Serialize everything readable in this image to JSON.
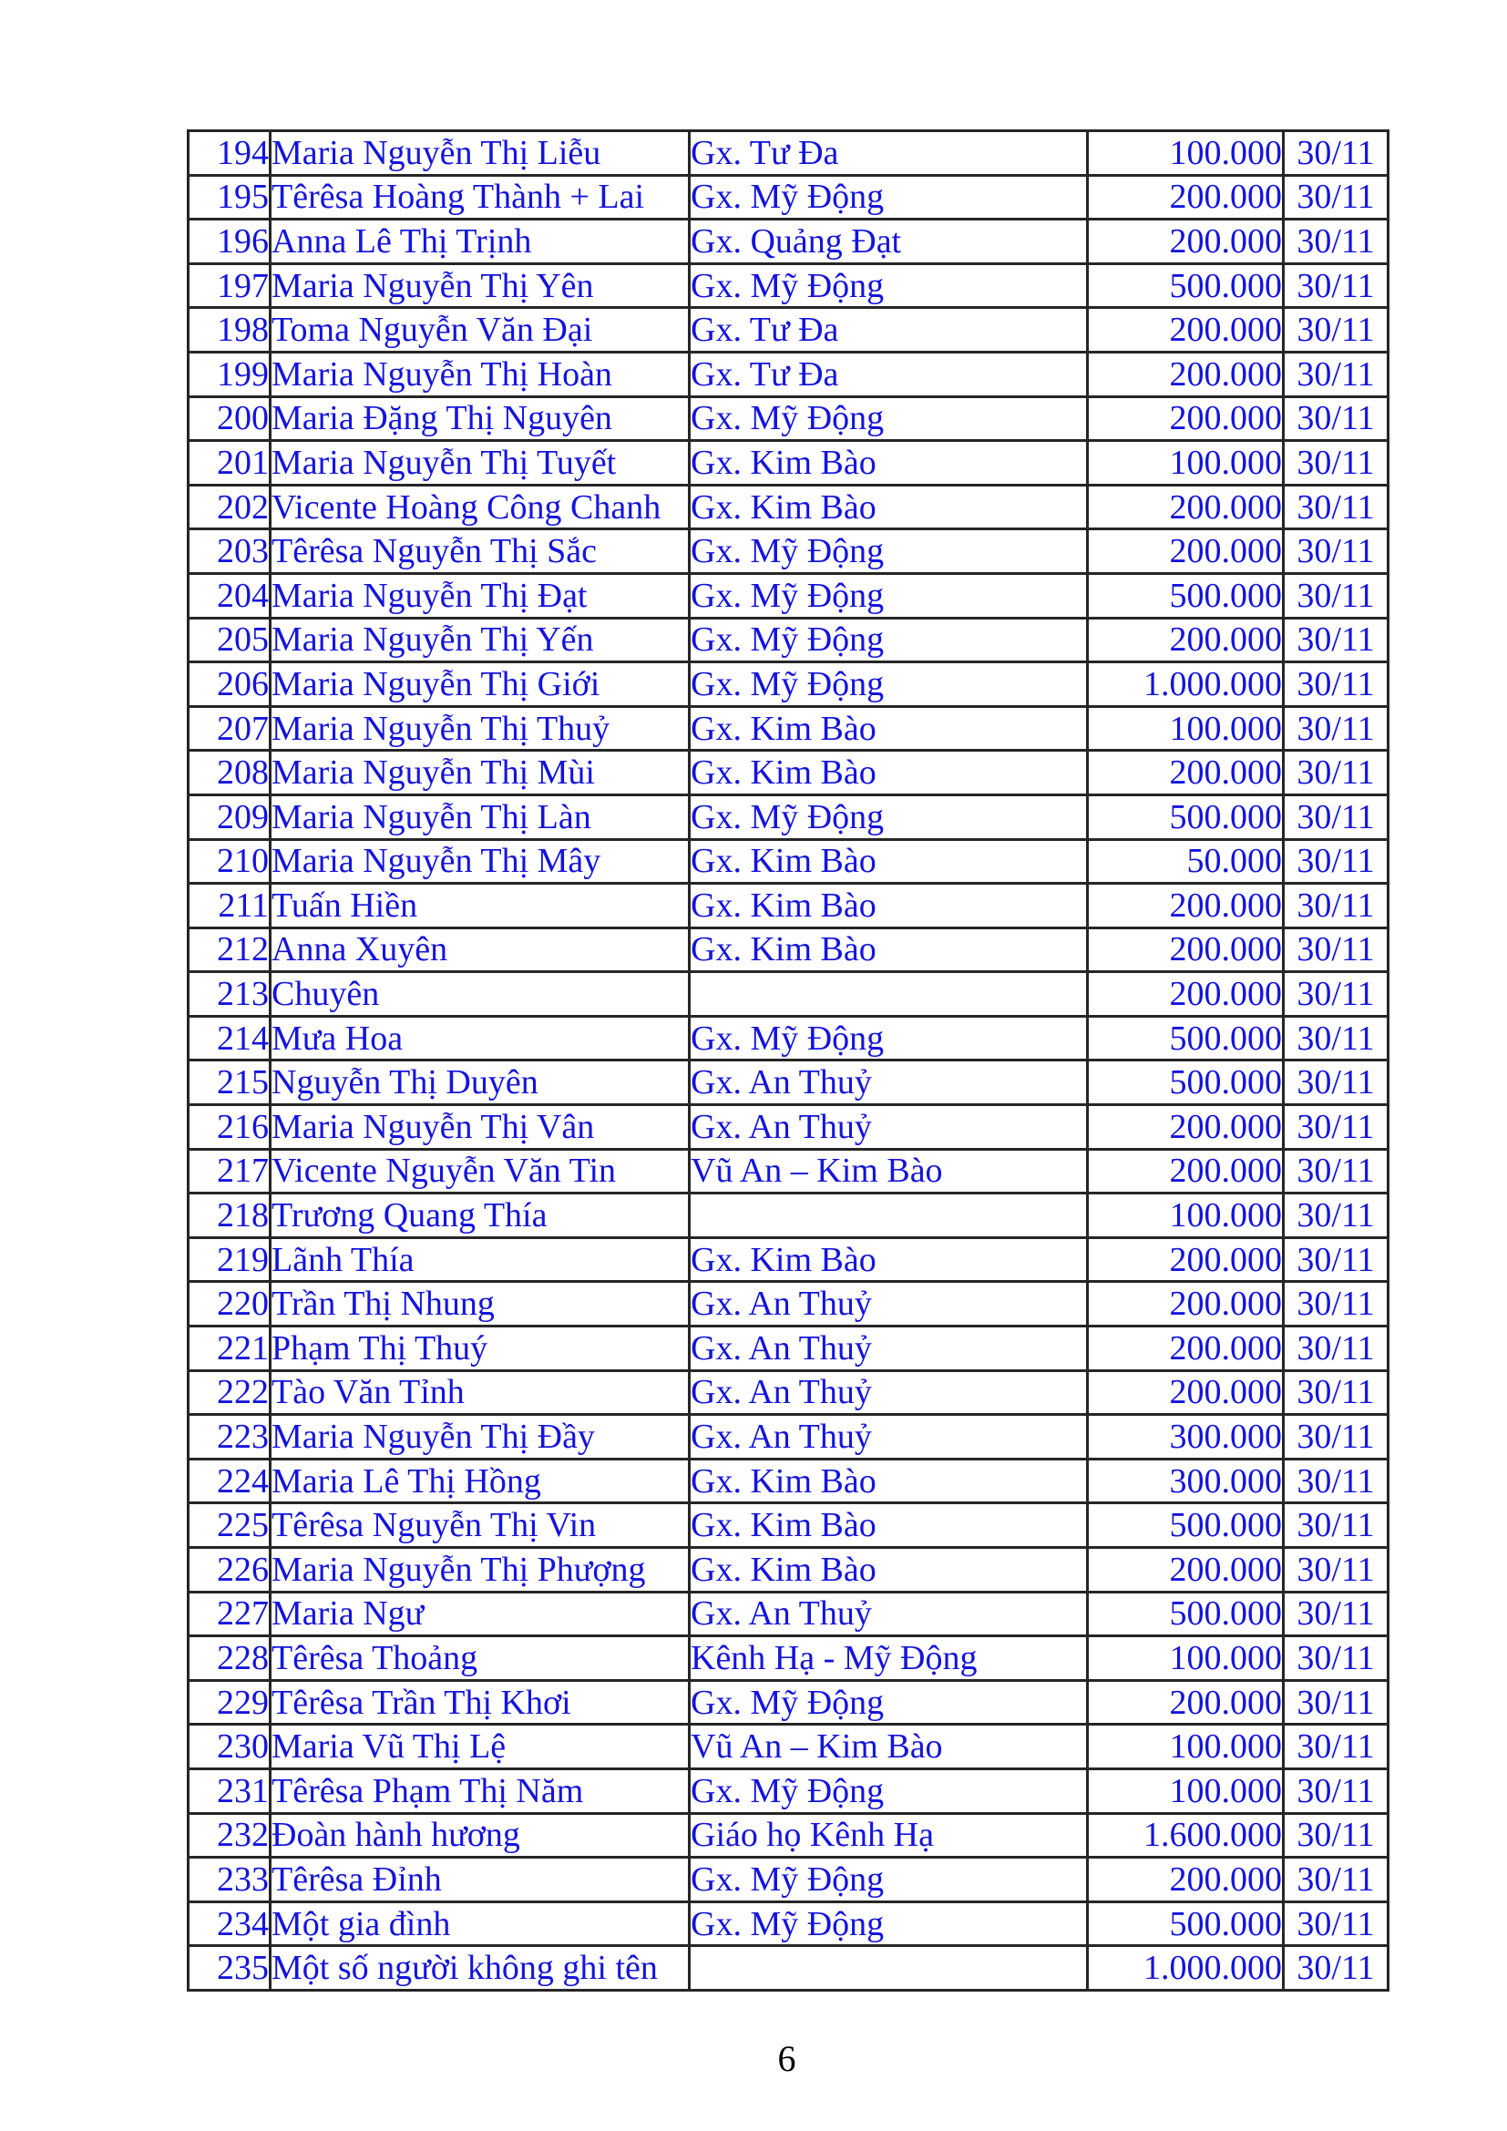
{
  "page_number": "6",
  "styles": {
    "text_color": "#1414dd",
    "border_color": "#262626",
    "background_color": "#ffffff"
  },
  "table": {
    "columns": [
      "no",
      "name",
      "parish",
      "amount",
      "date"
    ],
    "date_note": "all rows dated 30/11"
  },
  "rows": [
    {
      "no": "194",
      "name": "Maria Nguyễn Thị Liễu",
      "parish": "Gx. Tư Đa",
      "amount": "100.000",
      "date": "30/11"
    },
    {
      "no": "195",
      "name": "Têrêsa Hoàng Thành + Lai",
      "parish": "Gx. Mỹ Động",
      "amount": "200.000",
      "date": "30/11"
    },
    {
      "no": "196",
      "name": "Anna Lê Thị Trịnh",
      "parish": "Gx. Quảng Đạt",
      "amount": "200.000",
      "date": "30/11"
    },
    {
      "no": "197",
      "name": "Maria Nguyễn Thị Yên",
      "parish": "Gx. Mỹ Động",
      "amount": "500.000",
      "date": "30/11"
    },
    {
      "no": "198",
      "name": "Toma Nguyễn Văn Đại",
      "parish": "Gx. Tư Đa",
      "amount": "200.000",
      "date": "30/11"
    },
    {
      "no": "199",
      "name": "Maria Nguyễn Thị Hoàn",
      "parish": "Gx. Tư Đa",
      "amount": "200.000",
      "date": "30/11"
    },
    {
      "no": "200",
      "name": "Maria Đặng Thị Nguyên",
      "parish": "Gx. Mỹ Động",
      "amount": "200.000",
      "date": "30/11"
    },
    {
      "no": "201",
      "name": "Maria Nguyễn Thị Tuyết",
      "parish": "Gx. Kim Bào",
      "amount": "100.000",
      "date": "30/11"
    },
    {
      "no": "202",
      "name": "Vicente Hoàng Công Chanh",
      "parish": "Gx. Kim Bào",
      "amount": "200.000",
      "date": "30/11"
    },
    {
      "no": "203",
      "name": "Têrêsa Nguyễn Thị Sắc",
      "parish": "Gx. Mỹ Động",
      "amount": "200.000",
      "date": "30/11"
    },
    {
      "no": "204",
      "name": "Maria Nguyễn Thị Đạt",
      "parish": "Gx. Mỹ Động",
      "amount": "500.000",
      "date": "30/11"
    },
    {
      "no": "205",
      "name": "Maria Nguyễn Thị Yến",
      "parish": "Gx. Mỹ Động",
      "amount": "200.000",
      "date": "30/11"
    },
    {
      "no": "206",
      "name": "Maria Nguyễn Thị Giới",
      "parish": "Gx. Mỹ Động",
      "amount": "1.000.000",
      "date": "30/11"
    },
    {
      "no": "207",
      "name": "Maria Nguyễn Thị Thuỷ",
      "parish": "Gx. Kim Bào",
      "amount": "100.000",
      "date": "30/11"
    },
    {
      "no": "208",
      "name": "Maria Nguyễn Thị Mùi",
      "parish": "Gx. Kim Bào",
      "amount": "200.000",
      "date": "30/11"
    },
    {
      "no": "209",
      "name": "Maria Nguyễn Thị Làn",
      "parish": "Gx. Mỹ Động",
      "amount": "500.000",
      "date": "30/11"
    },
    {
      "no": "210",
      "name": "Maria Nguyễn Thị Mây",
      "parish": "Gx. Kim Bào",
      "amount": "50.000",
      "date": "30/11"
    },
    {
      "no": "211",
      "name": "Tuấn Hiền",
      "parish": "Gx. Kim Bào",
      "amount": "200.000",
      "date": "30/11"
    },
    {
      "no": "212",
      "name": "Anna Xuyên",
      "parish": "Gx. Kim Bào",
      "amount": "200.000",
      "date": "30/11"
    },
    {
      "no": "213",
      "name": "Chuyên",
      "parish": "",
      "amount": "200.000",
      "date": "30/11"
    },
    {
      "no": "214",
      "name": "Mưa Hoa",
      "parish": "Gx. Mỹ Động",
      "amount": "500.000",
      "date": "30/11"
    },
    {
      "no": "215",
      "name": "Nguyễn Thị Duyên",
      "parish": "Gx. An Thuỷ",
      "amount": "500.000",
      "date": "30/11"
    },
    {
      "no": "216",
      "name": "Maria Nguyễn Thị Vân",
      "parish": "Gx. An Thuỷ",
      "amount": "200.000",
      "date": "30/11"
    },
    {
      "no": "217",
      "name": "Vicente Nguyễn Văn Tin",
      "parish": "Vũ An – Kim Bào",
      "amount": "200.000",
      "date": "30/11"
    },
    {
      "no": "218",
      "name": "Trương Quang Thía",
      "parish": "",
      "amount": "100.000",
      "date": "30/11"
    },
    {
      "no": "219",
      "name": "Lãnh Thía",
      "parish": "Gx. Kim Bào",
      "amount": "200.000",
      "date": "30/11"
    },
    {
      "no": "220",
      "name": "Trần Thị Nhung",
      "parish": "Gx. An Thuỷ",
      "amount": "200.000",
      "date": "30/11"
    },
    {
      "no": "221",
      "name": "Phạm Thị Thuý",
      "parish": "Gx. An Thuỷ",
      "amount": "200.000",
      "date": "30/11"
    },
    {
      "no": "222",
      "name": "Tào Văn Tỉnh",
      "parish": "Gx. An Thuỷ",
      "amount": "200.000",
      "date": "30/11"
    },
    {
      "no": "223",
      "name": "Maria Nguyễn Thị Đầy",
      "parish": "Gx. An Thuỷ",
      "amount": "300.000",
      "date": "30/11"
    },
    {
      "no": "224",
      "name": "Maria Lê Thị Hồng",
      "parish": "Gx. Kim Bào",
      "amount": "300.000",
      "date": "30/11"
    },
    {
      "no": "225",
      "name": "Têrêsa Nguyễn Thị Vin",
      "parish": "Gx. Kim Bào",
      "amount": "500.000",
      "date": "30/11"
    },
    {
      "no": "226",
      "name": "Maria Nguyễn Thị Phượng",
      "parish": "Gx. Kim Bào",
      "amount": "200.000",
      "date": "30/11"
    },
    {
      "no": "227",
      "name": "Maria Ngư",
      "parish": "Gx. An Thuỷ",
      "amount": "500.000",
      "date": "30/11"
    },
    {
      "no": "228",
      "name": "Têrêsa Thoảng",
      "parish": "Kênh Hạ - Mỹ Động",
      "amount": "100.000",
      "date": "30/11"
    },
    {
      "no": "229",
      "name": "Têrêsa Trần Thị Khơi",
      "parish": "Gx. Mỹ Động",
      "amount": "200.000",
      "date": "30/11"
    },
    {
      "no": "230",
      "name": "Maria Vũ Thị Lệ",
      "parish": "Vũ An – Kim Bào",
      "amount": "100.000",
      "date": "30/11"
    },
    {
      "no": "231",
      "name": "Têrêsa Phạm Thị Năm",
      "parish": "Gx. Mỹ Động",
      "amount": "100.000",
      "date": "30/11"
    },
    {
      "no": "232",
      "name": "Đoàn hành hương",
      "parish": "Giáo họ Kênh Hạ",
      "amount": "1.600.000",
      "date": "30/11"
    },
    {
      "no": "233",
      "name": "Têrêsa Đỉnh",
      "parish": "Gx. Mỹ Động",
      "amount": "200.000",
      "date": "30/11"
    },
    {
      "no": "234",
      "name": "Một gia đình",
      "parish": "Gx. Mỹ Động",
      "amount": "500.000",
      "date": "30/11"
    },
    {
      "no": "235",
      "name": "Một số người không ghi tên",
      "parish": "",
      "amount": "1.000.000",
      "date": "30/11"
    }
  ]
}
